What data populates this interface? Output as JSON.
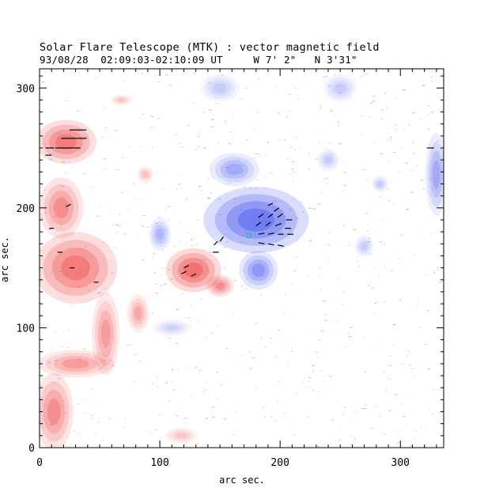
{
  "header": {
    "title": "Solar Flare Telescope (MTK) : vector magnetic field",
    "subtitle": "93/08/28  02:09:03-02:10:09 UT     W 7' 2\"   N 3'31\""
  },
  "chart_data": {
    "type": "heatmap",
    "title": "Solar Flare Telescope (MTK) : vector magnetic field",
    "subtitle": "93/08/28  02:09:03-02:10:09 UT     W 7' 2\"   N 3'31\"",
    "xlabel": "arc sec.",
    "ylabel": "arc sec.",
    "xlim": [
      0,
      336
    ],
    "ylim": [
      0,
      316
    ],
    "x_ticks": [
      0,
      100,
      200,
      300
    ],
    "y_ticks": [
      0,
      100,
      200,
      300
    ],
    "x_tick_labels": [
      "0",
      "100",
      "200",
      "300"
    ],
    "y_tick_labels": [
      "0",
      "100",
      "200",
      "300"
    ],
    "colors": {
      "positive": "#ee3333",
      "negative": "#3344ee",
      "vectors": "#000000",
      "marker": "#22bbbb"
    },
    "regions": [
      {
        "polarity": "negative",
        "cx": 180,
        "cy": 190,
        "rx": 38,
        "ry": 24,
        "strength": 1.0
      },
      {
        "polarity": "negative",
        "cx": 162,
        "cy": 232,
        "rx": 18,
        "ry": 12,
        "strength": 0.55
      },
      {
        "polarity": "negative",
        "cx": 182,
        "cy": 148,
        "rx": 14,
        "ry": 14,
        "strength": 0.7
      },
      {
        "polarity": "negative",
        "cx": 100,
        "cy": 178,
        "rx": 8,
        "ry": 12,
        "strength": 0.45
      },
      {
        "polarity": "negative",
        "cx": 330,
        "cy": 228,
        "rx": 8,
        "ry": 30,
        "strength": 0.55
      },
      {
        "polarity": "negative",
        "cx": 150,
        "cy": 300,
        "rx": 14,
        "ry": 10,
        "strength": 0.3
      },
      {
        "polarity": "negative",
        "cx": 250,
        "cy": 300,
        "rx": 12,
        "ry": 10,
        "strength": 0.3
      },
      {
        "polarity": "negative",
        "cx": 110,
        "cy": 100,
        "rx": 14,
        "ry": 6,
        "strength": 0.25
      },
      {
        "polarity": "negative",
        "cx": 240,
        "cy": 240,
        "rx": 8,
        "ry": 8,
        "strength": 0.3
      },
      {
        "polarity": "negative",
        "cx": 283,
        "cy": 220,
        "rx": 6,
        "ry": 6,
        "strength": 0.3
      },
      {
        "polarity": "negative",
        "cx": 270,
        "cy": 168,
        "rx": 7,
        "ry": 8,
        "strength": 0.3
      },
      {
        "polarity": "positive",
        "cx": 128,
        "cy": 148,
        "rx": 20,
        "ry": 16,
        "strength": 1.0
      },
      {
        "polarity": "positive",
        "cx": 150,
        "cy": 135,
        "rx": 10,
        "ry": 8,
        "strength": 0.7
      },
      {
        "polarity": "positive",
        "cx": 22,
        "cy": 255,
        "rx": 22,
        "ry": 16,
        "strength": 0.9
      },
      {
        "polarity": "positive",
        "cx": 30,
        "cy": 150,
        "rx": 30,
        "ry": 26,
        "strength": 0.9
      },
      {
        "polarity": "positive",
        "cx": 18,
        "cy": 200,
        "rx": 16,
        "ry": 22,
        "strength": 0.7
      },
      {
        "polarity": "positive",
        "cx": 55,
        "cy": 95,
        "rx": 10,
        "ry": 30,
        "strength": 0.6
      },
      {
        "polarity": "positive",
        "cx": 30,
        "cy": 70,
        "rx": 28,
        "ry": 10,
        "strength": 0.6
      },
      {
        "polarity": "positive",
        "cx": 12,
        "cy": 30,
        "rx": 14,
        "ry": 28,
        "strength": 0.7
      },
      {
        "polarity": "positive",
        "cx": 82,
        "cy": 112,
        "rx": 8,
        "ry": 14,
        "strength": 0.5
      },
      {
        "polarity": "positive",
        "cx": 88,
        "cy": 228,
        "rx": 6,
        "ry": 6,
        "strength": 0.35
      },
      {
        "polarity": "positive",
        "cx": 68,
        "cy": 290,
        "rx": 8,
        "ry": 4,
        "strength": 0.3
      },
      {
        "polarity": "positive",
        "cx": 118,
        "cy": 10,
        "rx": 12,
        "ry": 6,
        "strength": 0.3
      }
    ],
    "vectors": [
      {
        "x": 190,
        "y": 202,
        "dx": 4,
        "dy": 2
      },
      {
        "x": 195,
        "y": 197,
        "dx": 4,
        "dy": 3
      },
      {
        "x": 182,
        "y": 192,
        "dx": 4,
        "dy": 3
      },
      {
        "x": 190,
        "y": 192,
        "dx": 4,
        "dy": 3
      },
      {
        "x": 198,
        "y": 192,
        "dx": 4,
        "dy": 3
      },
      {
        "x": 205,
        "y": 190,
        "dx": 5,
        "dy": 0
      },
      {
        "x": 180,
        "y": 185,
        "dx": 4,
        "dy": 3
      },
      {
        "x": 188,
        "y": 185,
        "dx": 4,
        "dy": 3
      },
      {
        "x": 196,
        "y": 185,
        "dx": 5,
        "dy": 2
      },
      {
        "x": 204,
        "y": 183,
        "dx": 5,
        "dy": 0
      },
      {
        "x": 182,
        "y": 178,
        "dx": 5,
        "dy": 1
      },
      {
        "x": 190,
        "y": 178,
        "dx": 5,
        "dy": 1
      },
      {
        "x": 198,
        "y": 178,
        "dx": 5,
        "dy": 0
      },
      {
        "x": 206,
        "y": 178,
        "dx": 5,
        "dy": 0
      },
      {
        "x": 182,
        "y": 171,
        "dx": 5,
        "dy": -1
      },
      {
        "x": 190,
        "y": 170,
        "dx": 5,
        "dy": -1
      },
      {
        "x": 198,
        "y": 169,
        "dx": 5,
        "dy": -1
      },
      {
        "x": 145,
        "y": 169,
        "dx": 3,
        "dy": 3
      },
      {
        "x": 150,
        "y": 172,
        "dx": 3,
        "dy": 4
      },
      {
        "x": 120,
        "y": 150,
        "dx": 4,
        "dy": 2
      },
      {
        "x": 118,
        "y": 145,
        "dx": 4,
        "dy": 2
      },
      {
        "x": 126,
        "y": 143,
        "dx": 4,
        "dy": 2
      },
      {
        "x": 144,
        "y": 163,
        "dx": 5,
        "dy": 0
      },
      {
        "x": 18,
        "y": 258,
        "dx": 7,
        "dy": 0
      },
      {
        "x": 25,
        "y": 258,
        "dx": 7,
        "dy": 0
      },
      {
        "x": 32,
        "y": 258,
        "dx": 7,
        "dy": 0
      },
      {
        "x": 25,
        "y": 265,
        "dx": 7,
        "dy": 0
      },
      {
        "x": 32,
        "y": 265,
        "dx": 7,
        "dy": 0
      },
      {
        "x": 5,
        "y": 250,
        "dx": 7,
        "dy": 0
      },
      {
        "x": 13,
        "y": 250,
        "dx": 7,
        "dy": 0
      },
      {
        "x": 20,
        "y": 250,
        "dx": 7,
        "dy": 0
      },
      {
        "x": 27,
        "y": 250,
        "dx": 7,
        "dy": 0
      },
      {
        "x": 5,
        "y": 244,
        "dx": 5,
        "dy": 0
      },
      {
        "x": 22,
        "y": 201,
        "dx": 4,
        "dy": 2
      },
      {
        "x": 8,
        "y": 183,
        "dx": 4,
        "dy": 0
      },
      {
        "x": 15,
        "y": 163,
        "dx": 4,
        "dy": 0
      },
      {
        "x": 25,
        "y": 150,
        "dx": 4,
        "dy": 0
      },
      {
        "x": 45,
        "y": 138,
        "dx": 4,
        "dy": 0
      },
      {
        "x": 322,
        "y": 250,
        "dx": 6,
        "dy": 0
      }
    ],
    "marker": {
      "x": 174,
      "y": 177
    }
  }
}
